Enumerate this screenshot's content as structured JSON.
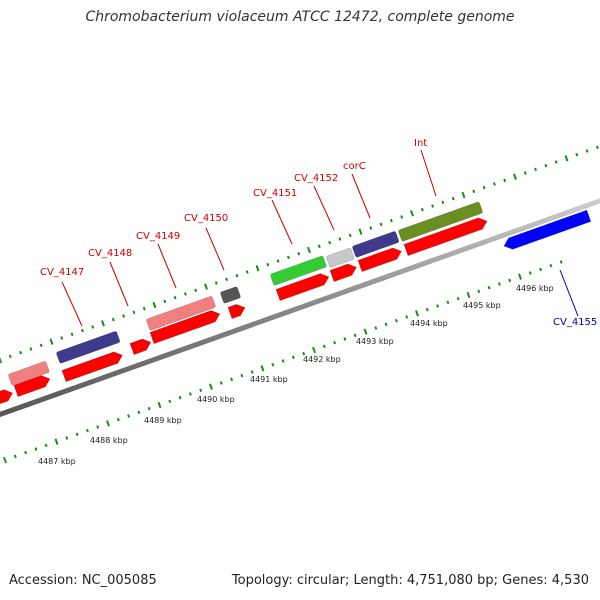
{
  "title": "Chromobacterium violaceum ATCC 12472, complete genome",
  "footer": {
    "accession": "Accession: NC_005085",
    "summary": "Topology: circular; Length: 4,751,080 bp; Genes: 4,530"
  },
  "scale_labels": [
    "4487 kbp",
    "4488 kbp",
    "4489 kbp",
    "4490 kbp",
    "4491 kbp",
    "4492 kbp",
    "4493 kbp",
    "4494 kbp",
    "4495 kbp",
    "4496 kbp"
  ],
  "gene_labels": [
    {
      "text": "CV_4147",
      "color": "#cc0000"
    },
    {
      "text": "CV_4148",
      "color": "#cc0000"
    },
    {
      "text": "CV_4149",
      "color": "#cc0000"
    },
    {
      "text": "CV_4150",
      "color": "#cc0000"
    },
    {
      "text": "CV_4151",
      "color": "#cc0000"
    },
    {
      "text": "CV_4152",
      "color": "#cc0000"
    },
    {
      "text": "corC",
      "color": "#cc0000"
    },
    {
      "text": "Int",
      "color": "#cc0000"
    },
    {
      "text": "CV_4155",
      "color": "#0000aa"
    }
  ],
  "colors": {
    "backbone": "#888888",
    "tick": "#1a8a1a",
    "forward_gene": "#ff0000",
    "reverse_gene": "#0000ff",
    "cog_pink": "#f08080",
    "cog_navy": "#3f3a8c",
    "cog_gray": "#555555",
    "cog_lightgreen": "#33cc33",
    "cog_silver": "#c8c8c8",
    "cog_olive": "#6b8e23"
  }
}
